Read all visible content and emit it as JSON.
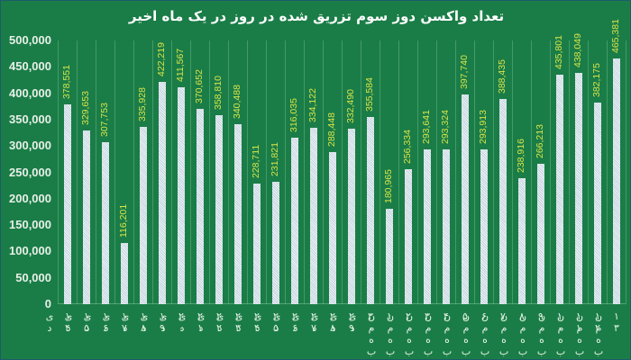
{
  "chart_data": {
    "type": "bar",
    "title": "تعداد واکسن دوز سوم تزریق شده در روز در یک ماه اخیر",
    "xlabel": "",
    "ylabel": "",
    "ylim": [
      0,
      500000
    ],
    "yticks": [
      "0",
      "50,000",
      "100,000",
      "150,000",
      "200,000",
      "250,000",
      "300,000",
      "350,000",
      "400,000",
      "450,000",
      "500,000"
    ],
    "grid": "vertical",
    "legend": "none",
    "categories": [
      "۱۴ دی",
      "۱۵ دی",
      "۱۶ دی",
      "۱۷ دی",
      "۱۸ دی",
      "۱۹ دی",
      "۲۰ دی",
      "۲۱ دی",
      "۲۲ دی",
      "۲۳ دی",
      "۲۴ دی",
      "۲۵ دی",
      "۲۶ دی",
      "۲۷ دی",
      "۲۸ دی",
      "۲۹ دی",
      "۳۰ دی",
      "۱ بهمن",
      "۲ بهمن",
      "۳ بهمن",
      "۴ بهمن",
      "۵ بهمن",
      "۶ بهمن",
      "۷ بهمن",
      "۸ بهمن",
      "۹ بهمن",
      "۱۰ بهمن",
      "۱۱ بهمن",
      "۱۲ بهمن",
      "۱۳ بهمن"
    ],
    "values": [
      378551,
      329653,
      307753,
      116201,
      335928,
      422219,
      411567,
      370652,
      358810,
      340488,
      228711,
      231821,
      316035,
      334122,
      288448,
      332490,
      355584,
      180965,
      256334,
      293641,
      293324,
      397740,
      293913,
      388435,
      238916,
      266213,
      435801,
      438049,
      382175,
      465381
    ],
    "value_labels": [
      "378,551",
      "329,653",
      "307,753",
      "116,201",
      "335,928",
      "422,219",
      "411,567",
      "370,652",
      "358,810",
      "340,488",
      "228,711",
      "231,821",
      "316,035",
      "334,122",
      "288,448",
      "332,490",
      "355,584",
      "180,965",
      "256,334",
      "293,641",
      "293,324",
      "397,740",
      "293,913",
      "388,435",
      "238,916",
      "266,213",
      "435,801",
      "438,049",
      "382,175",
      "465,381"
    ]
  },
  "colors": {
    "background": "#1a7d47",
    "bar": "#d8e6ee",
    "value_label": "#d8e34a",
    "axis_text": "#e8f0e8"
  }
}
